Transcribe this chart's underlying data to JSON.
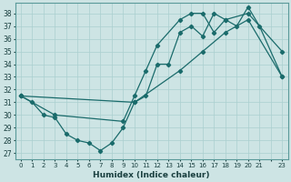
{
  "xlabel": "Humidex (Indice chaleur)",
  "bg_color": "#cde4e4",
  "grid_color": "#aacfcf",
  "line_color": "#1a6b6b",
  "xlim": [
    -0.5,
    23.5
  ],
  "ylim": [
    26.5,
    38.8
  ],
  "yticks": [
    27,
    28,
    29,
    30,
    31,
    32,
    33,
    34,
    35,
    36,
    37,
    38
  ],
  "series": [
    {
      "x": [
        0,
        1,
        2,
        3,
        4,
        5,
        6,
        7,
        8,
        9,
        10,
        11,
        12,
        13,
        14,
        15,
        16,
        17,
        18,
        19,
        20,
        21,
        23
      ],
      "y": [
        31.5,
        31.0,
        30.0,
        29.8,
        28.5,
        28.0,
        27.8,
        27.2,
        27.8,
        29.0,
        31.0,
        31.5,
        34.0,
        34.0,
        36.5,
        37.0,
        36.2,
        38.0,
        37.5,
        37.0,
        38.5,
        37.0,
        33.0
      ]
    },
    {
      "x": [
        0,
        3,
        9,
        10,
        11,
        12,
        14,
        15,
        16,
        17,
        18,
        20,
        23
      ],
      "y": [
        31.5,
        30.0,
        29.5,
        31.5,
        33.5,
        35.5,
        37.5,
        38.0,
        38.0,
        36.5,
        37.5,
        38.0,
        35.0
      ]
    },
    {
      "x": [
        0,
        10,
        14,
        16,
        18,
        20,
        23
      ],
      "y": [
        31.5,
        31.0,
        33.5,
        35.0,
        36.5,
        37.5,
        33.0
      ]
    }
  ]
}
